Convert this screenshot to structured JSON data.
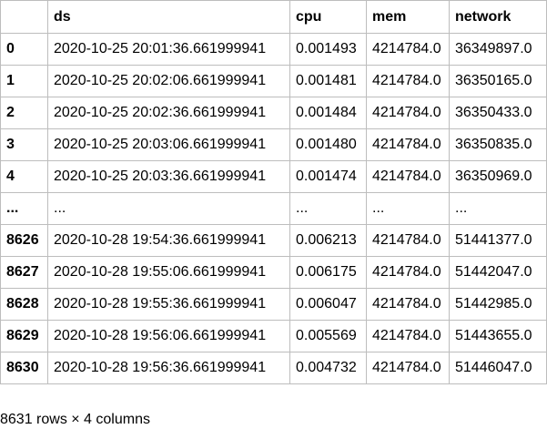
{
  "table": {
    "index_header": "",
    "columns": [
      "ds",
      "cpu",
      "mem",
      "network"
    ],
    "rows": [
      {
        "index": "0",
        "cells": [
          "2020-10-25 20:01:36.661999941",
          "0.001493",
          "4214784.0",
          "36349897.0"
        ]
      },
      {
        "index": "1",
        "cells": [
          "2020-10-25 20:02:06.661999941",
          "0.001481",
          "4214784.0",
          "36350165.0"
        ]
      },
      {
        "index": "2",
        "cells": [
          "2020-10-25 20:02:36.661999941",
          "0.001484",
          "4214784.0",
          "36350433.0"
        ]
      },
      {
        "index": "3",
        "cells": [
          "2020-10-25 20:03:06.661999941",
          "0.001480",
          "4214784.0",
          "36350835.0"
        ]
      },
      {
        "index": "4",
        "cells": [
          "2020-10-25 20:03:36.661999941",
          "0.001474",
          "4214784.0",
          "36350969.0"
        ]
      },
      {
        "index": "...",
        "cells": [
          "...",
          "...",
          "...",
          "..."
        ]
      },
      {
        "index": "8626",
        "cells": [
          "2020-10-28 19:54:36.661999941",
          "0.006213",
          "4214784.0",
          "51441377.0"
        ]
      },
      {
        "index": "8627",
        "cells": [
          "2020-10-28 19:55:06.661999941",
          "0.006175",
          "4214784.0",
          "51442047.0"
        ]
      },
      {
        "index": "8628",
        "cells": [
          "2020-10-28 19:55:36.661999941",
          "0.006047",
          "4214784.0",
          "51442985.0"
        ]
      },
      {
        "index": "8629",
        "cells": [
          "2020-10-28 19:56:06.661999941",
          "0.005569",
          "4214784.0",
          "51443655.0"
        ]
      },
      {
        "index": "8630",
        "cells": [
          "2020-10-28 19:56:36.661999941",
          "0.004732",
          "4214784.0",
          "51446047.0"
        ]
      }
    ]
  },
  "caption": "8631 rows × 4 columns"
}
